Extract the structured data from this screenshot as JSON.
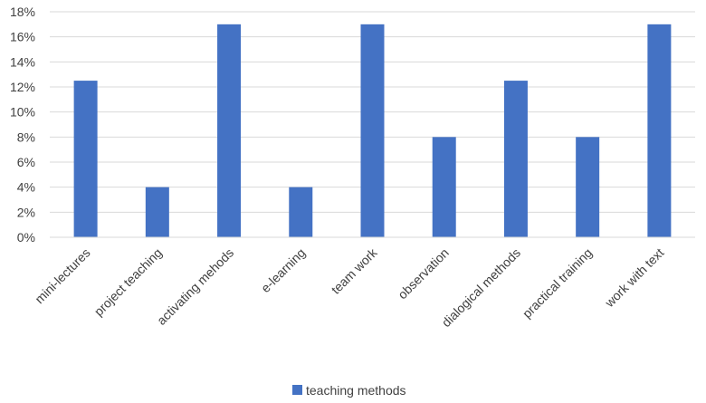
{
  "chart_data": {
    "type": "bar",
    "title": "",
    "xlabel": "",
    "ylabel": "",
    "categories": [
      "mini-lectures",
      "project teaching",
      "activating mehods",
      "e-learning",
      "team work",
      "observation",
      "dialogical methods",
      "practical training",
      "work with text"
    ],
    "series": [
      {
        "name": "teaching methods",
        "values": [
          0.125,
          0.04,
          0.17,
          0.04,
          0.17,
          0.08,
          0.125,
          0.08,
          0.17
        ],
        "color": "#4472C4"
      }
    ],
    "ylim": [
      0,
      0.18
    ],
    "yticks": [
      0,
      0.02,
      0.04,
      0.06,
      0.08,
      0.1,
      0.12,
      0.14,
      0.16,
      0.18
    ],
    "ytick_labels": [
      "0%",
      "2%",
      "4%",
      "6%",
      "8%",
      "10%",
      "12%",
      "14%",
      "16%",
      "18%"
    ],
    "grid": true,
    "legend_position": "bottom"
  }
}
